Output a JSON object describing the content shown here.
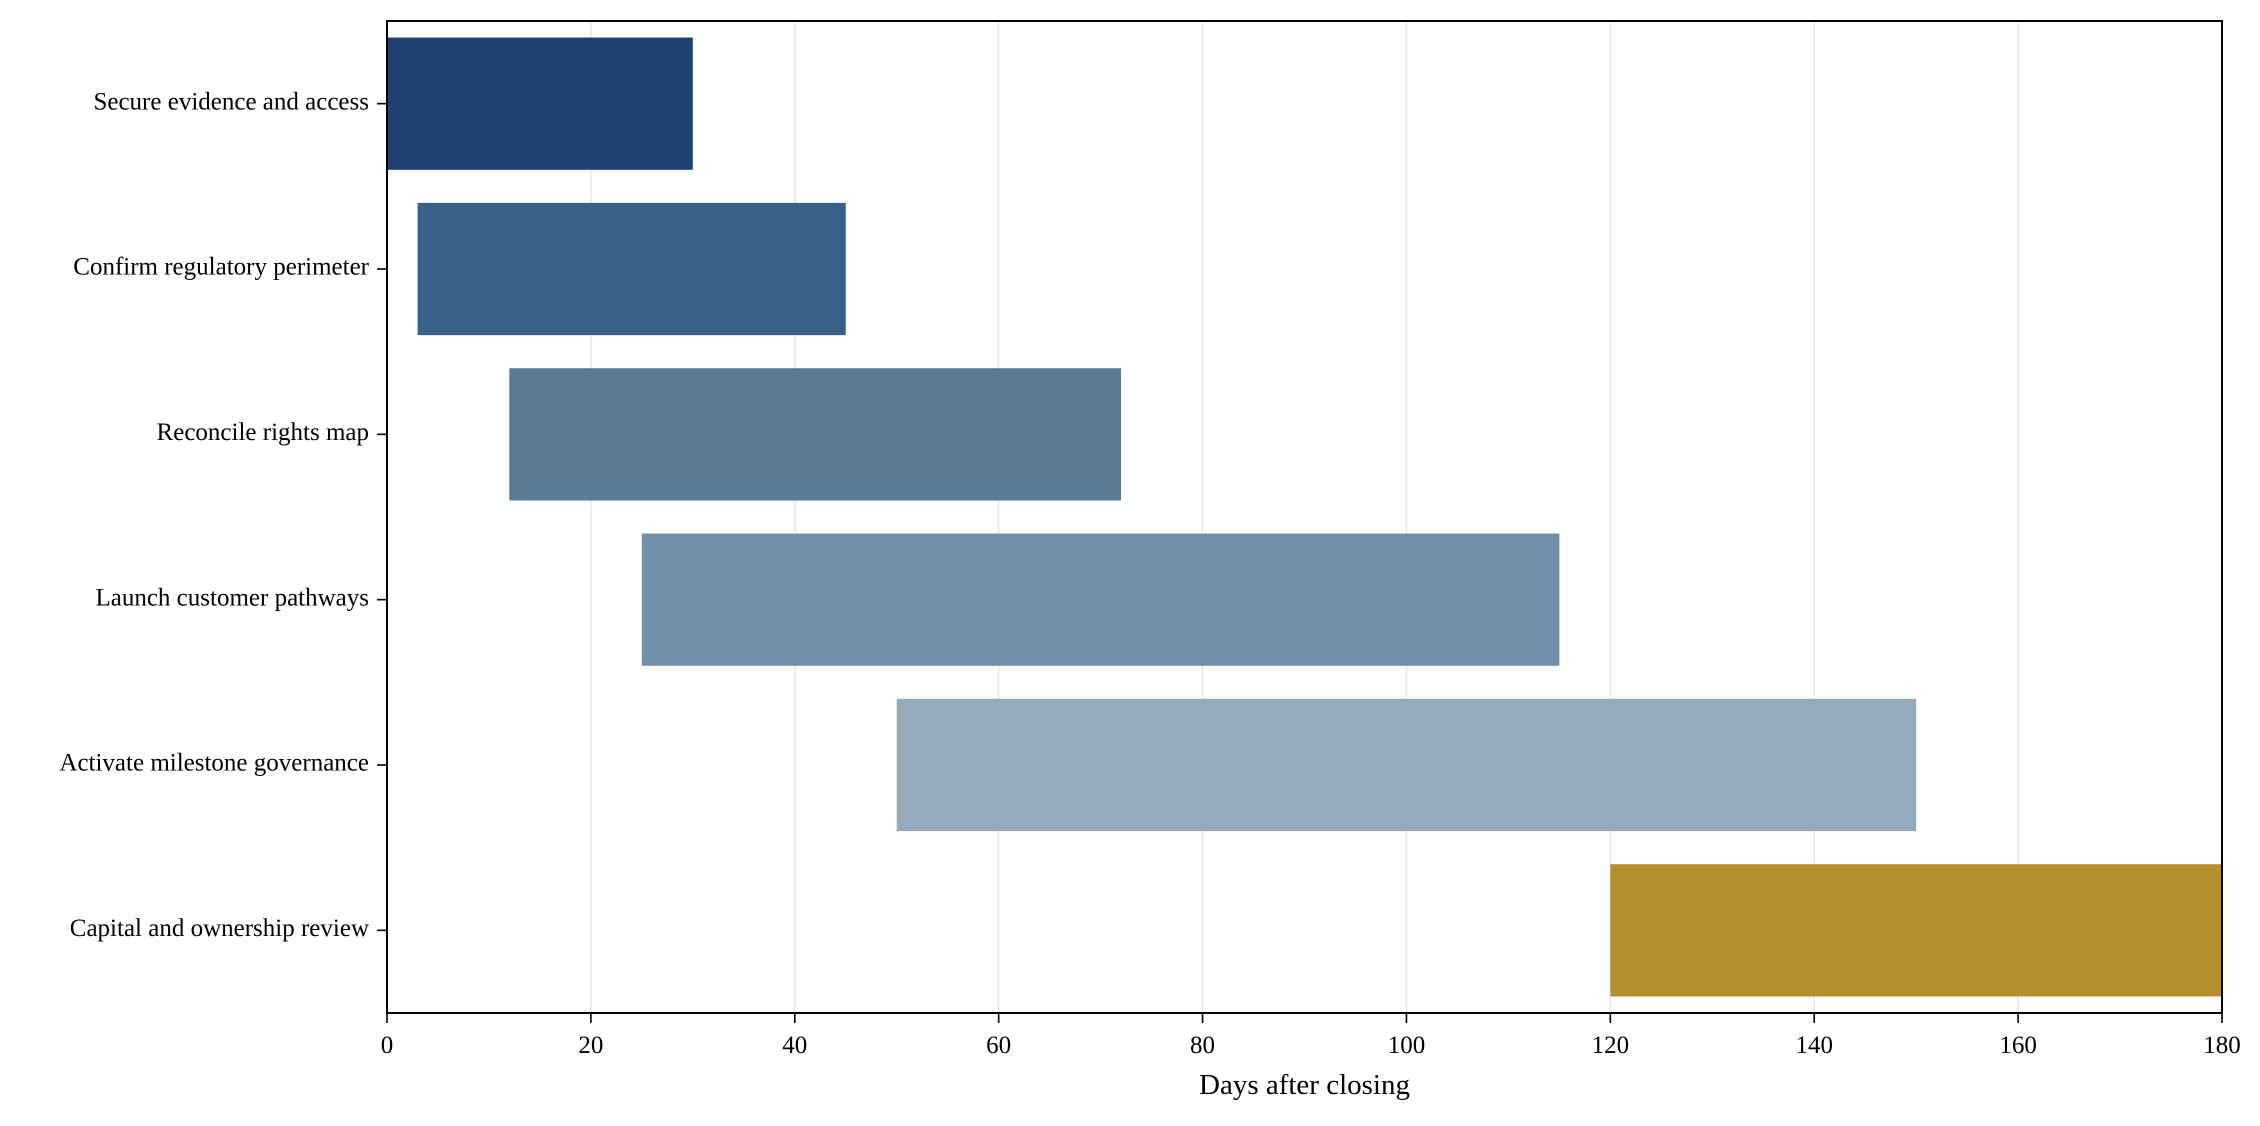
{
  "chart_data": {
    "type": "gantt",
    "xlabel": "Days after closing",
    "ylabel": "",
    "title": "",
    "xlim": [
      0,
      180
    ],
    "xticks": [
      0,
      20,
      40,
      60,
      80,
      100,
      120,
      140,
      160,
      180
    ],
    "grid": "vertical",
    "tasks": [
      {
        "label": "Secure evidence and access",
        "start": 0,
        "end": 30,
        "color": "#15396a"
      },
      {
        "label": "Confirm regulatory perimeter",
        "start": 3,
        "end": 45,
        "color": "#315c84"
      },
      {
        "label": "Reconcile rights map",
        "start": 12,
        "end": 72,
        "color": "#527692"
      },
      {
        "label": "Launch customer pathways",
        "start": 25,
        "end": 115,
        "color": "#6c8aa5"
      },
      {
        "label": "Activate milestone governance",
        "start": 50,
        "end": 150,
        "color": "#91a6b9"
      },
      {
        "label": "Capital and ownership review",
        "start": 120,
        "end": 180,
        "color": "#b38a24"
      }
    ]
  }
}
